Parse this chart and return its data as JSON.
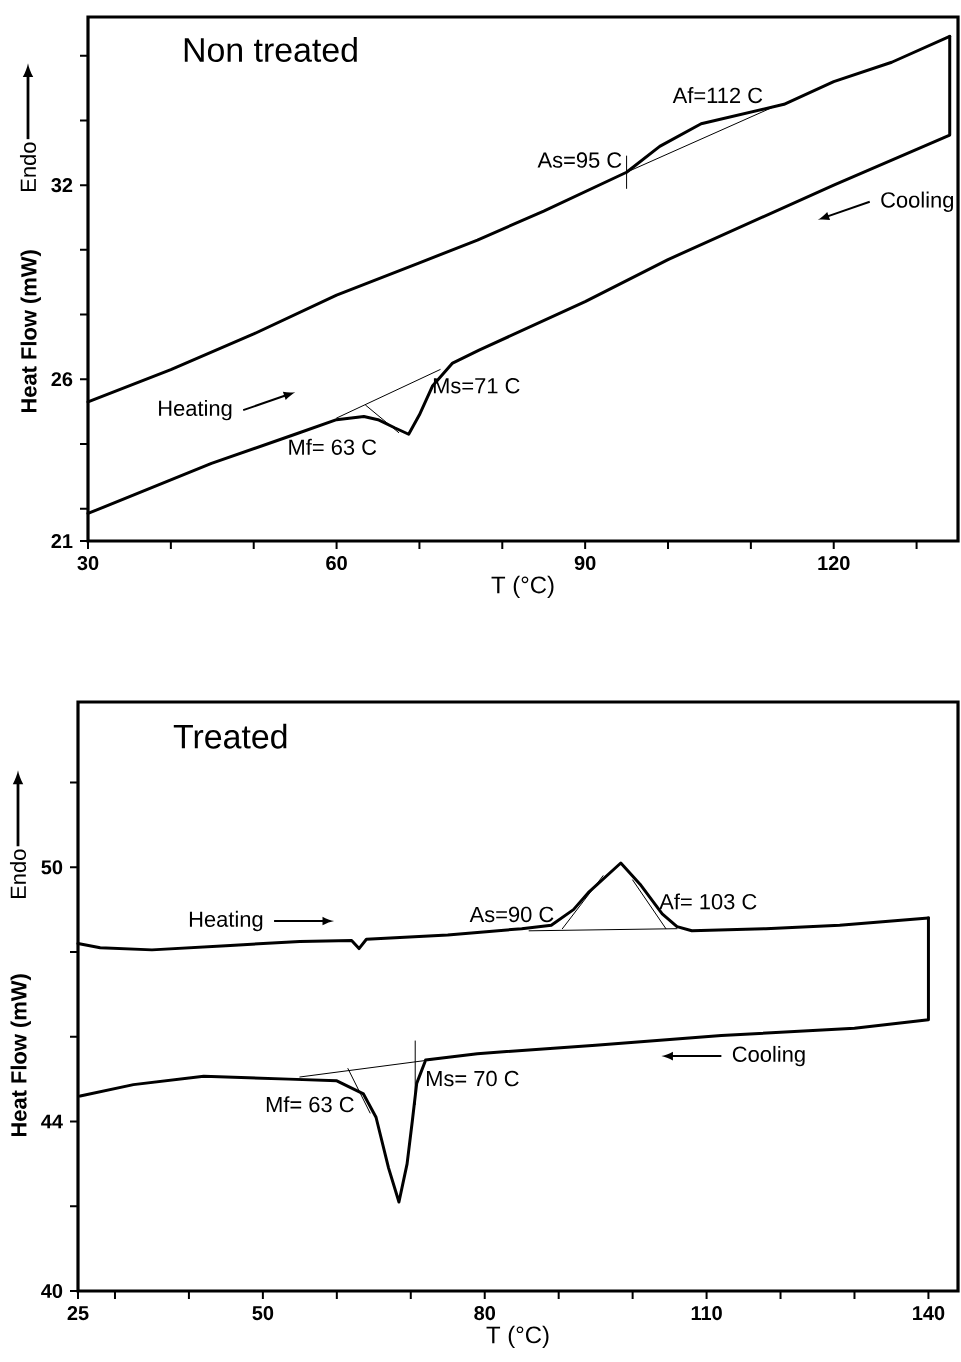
{
  "chart_data": [
    {
      "type": "line",
      "title": "Non treated",
      "xlabel": "T (°C)",
      "ylabel": "Heat Flow (mW)",
      "xlim": [
        30,
        135
      ],
      "ylim": [
        21,
        37.2
      ],
      "xticks": [
        30,
        {
          "value": 40,
          "label": null
        },
        {
          "value": 50,
          "label": null
        },
        60,
        {
          "value": 70,
          "label": null
        },
        {
          "value": 80,
          "label": null
        },
        90,
        {
          "value": 100,
          "label": null
        },
        {
          "value": 110,
          "label": null
        },
        120,
        {
          "value": 130,
          "label": null
        }
      ],
      "yticks": [
        21,
        {
          "value": 22,
          "label": null
        },
        {
          "value": 24,
          "label": null
        },
        26,
        {
          "value": 28,
          "label": null
        },
        {
          "value": 30,
          "label": null
        },
        32,
        {
          "value": 34,
          "label": null
        },
        {
          "value": 36,
          "label": null
        }
      ],
      "annotations": [
        {
          "text": "As=95 C",
          "x": 95,
          "y": 32.4
        },
        {
          "text": "Af=112 C",
          "x": 112,
          "y": 34.4
        },
        {
          "text": "Ms=71 C",
          "x": 71,
          "y": 25.8
        },
        {
          "text": "Mf= 63 C",
          "x": 63,
          "y": 24.85
        },
        "Endo"
      ],
      "series": [
        {
          "name": "Heating",
          "color": "#000000",
          "x": [
            30,
            40,
            50,
            60,
            70,
            77,
            85,
            95,
            99,
            104,
            109,
            114,
            120,
            127,
            134
          ],
          "values": [
            25.3,
            26.3,
            27.4,
            28.6,
            29.6,
            30.3,
            31.2,
            32.4,
            33.2,
            33.9,
            34.2,
            34.5,
            35.2,
            35.8,
            36.6
          ]
        },
        {
          "name": "Cooling",
          "color": "#000000",
          "x": [
            134,
            134,
            120,
            100,
            90,
            77.2,
            74,
            71.6,
            70,
            68.7,
            67,
            65,
            63.3,
            60,
            55,
            44.9,
            30
          ],
          "values": [
            36.6,
            33.55,
            32.0,
            29.7,
            28.4,
            26.9,
            26.5,
            25.8,
            24.9,
            24.3,
            24.5,
            24.75,
            24.85,
            24.75,
            24.3,
            23.4,
            21.85
          ]
        },
        {
          "color": "#000000",
          "x": [
            95,
            113
          ],
          "values": [
            32.4,
            34.45
          ]
        },
        {
          "color": "#000000",
          "x": [
            95,
            95
          ],
          "values": [
            31.9,
            32.9
          ]
        },
        {
          "color": "#000000",
          "x": [
            60,
            72.5
          ],
          "values": [
            24.8,
            26.3
          ]
        },
        {
          "color": "#000000",
          "x": [
            63.5,
            67.5
          ],
          "values": [
            25.2,
            24.35
          ]
        }
      ]
    },
    {
      "type": "line",
      "title": "Treated",
      "xlabel": "T (°C)",
      "ylabel": "Heat Flow (mW)",
      "xlim": [
        25,
        144
      ],
      "ylim": [
        40,
        53.9
      ],
      "xticks": [
        25,
        {
          "value": 30,
          "label": null
        },
        {
          "value": 40,
          "label": null
        },
        50,
        {
          "value": 60,
          "label": null
        },
        {
          "value": 70,
          "label": null
        },
        80,
        {
          "value": 90,
          "label": null
        },
        {
          "value": 100,
          "label": null
        },
        110,
        {
          "value": 120,
          "label": null
        },
        {
          "value": 130,
          "label": null
        },
        140
      ],
      "yticks": [
        40,
        {
          "value": 42,
          "label": null
        },
        44,
        {
          "value": 46,
          "label": null
        },
        {
          "value": 48,
          "label": null
        },
        50,
        {
          "value": 52,
          "label": null
        }
      ],
      "annotations": [
        {
          "text": "As=90 C",
          "x": 90,
          "y": 48.6
        },
        {
          "text": "Af= 103 C",
          "x": 103,
          "y": 48.9
        },
        {
          "text": "Ms= 70 C",
          "x": 70,
          "y": 45.3
        },
        {
          "text": "Mf= 63 C",
          "x": 63,
          "y": 44.7
        },
        "Endo"
      ],
      "series": [
        {
          "name": "Heating",
          "color": "#000000",
          "x": [
            25,
            28,
            35,
            45,
            55,
            62,
            63,
            64,
            75,
            85,
            89,
            92,
            94,
            98.4,
            101,
            104,
            106,
            108,
            118,
            128,
            140
          ],
          "values": [
            48.2,
            48.1,
            48.05,
            48.15,
            48.25,
            48.27,
            48.08,
            48.3,
            48.4,
            48.55,
            48.63,
            49.0,
            49.4,
            50.1,
            49.6,
            48.9,
            48.6,
            48.5,
            48.55,
            48.63,
            48.8
          ]
        },
        {
          "name": "Cooling",
          "color": "#000000",
          "x": [
            140,
            140,
            130,
            112,
            95,
            79,
            72,
            71.9,
            70.8,
            70.2,
            69.5,
            68.4,
            67,
            65.3,
            63.6,
            60,
            53.5,
            42,
            32.5,
            25.3
          ],
          "values": [
            48.8,
            46.4,
            46.2,
            46.03,
            45.8,
            45.6,
            45.45,
            45.4,
            44.9,
            44.0,
            43.0,
            42.1,
            42.9,
            44.1,
            44.65,
            44.96,
            45.0,
            45.07,
            44.87,
            44.6
          ]
        },
        {
          "color": "#000000",
          "x": [
            86,
            106
          ],
          "values": [
            48.5,
            48.55
          ]
        },
        {
          "color": "#000000",
          "x": [
            90.5,
            96
          ],
          "values": [
            48.55,
            49.8
          ]
        },
        {
          "color": "#000000",
          "x": [
            100,
            104.5
          ],
          "values": [
            49.7,
            48.55
          ]
        },
        {
          "color": "#000000",
          "x": [
            55,
            79
          ],
          "values": [
            45.05,
            45.6
          ]
        },
        {
          "color": "#000000",
          "x": [
            70.6,
            70.6
          ],
          "values": [
            44.4,
            45.9
          ]
        },
        {
          "color": "#000000",
          "x": [
            61.5,
            64.5
          ],
          "values": [
            45.25,
            44.2
          ]
        }
      ]
    }
  ]
}
